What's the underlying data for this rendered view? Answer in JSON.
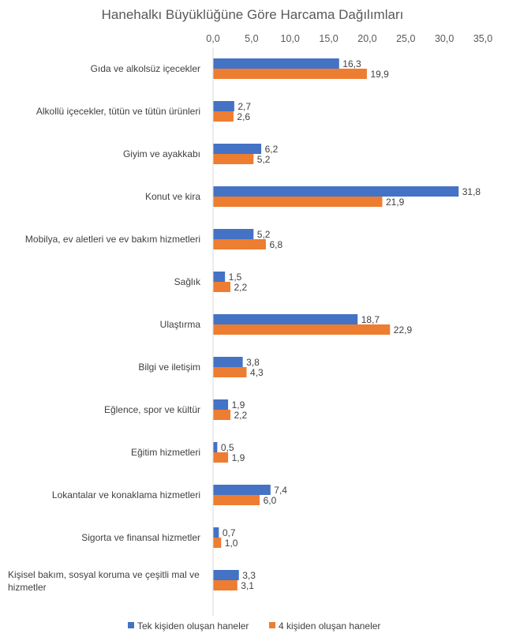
{
  "chart_data": {
    "type": "bar",
    "orientation": "horizontal",
    "title": "Hanehalkı Büyüklüğüne Göre Harcama Dağılımları",
    "xlim": [
      0,
      35
    ],
    "xticks": [
      "0,0",
      "5,0",
      "10,0",
      "15,0",
      "20,0",
      "25,0",
      "30,0",
      "35,0"
    ],
    "x_axis_position": "top",
    "grid": false,
    "legend_position": "bottom",
    "categories": [
      [
        "Gıda ve alkolsüz içecekler"
      ],
      [
        "Alkollü içecekler, tütün ve tütün ürünleri"
      ],
      [
        "Giyim ve ayakkabı"
      ],
      [
        "Konut ve kira"
      ],
      [
        "Mobilya, ev aletleri ve ev bakım hizmetleri"
      ],
      [
        "Sağlık"
      ],
      [
        "Ulaştırma"
      ],
      [
        "Bilgi ve iletişim"
      ],
      [
        "Eğlence, spor ve kültür"
      ],
      [
        "Eğitim hizmetleri"
      ],
      [
        "Lokantalar ve konaklama hizmetleri"
      ],
      [
        "Sigorta ve finansal hizmetler"
      ],
      [
        "Kişisel bakım, sosyal koruma ve çeşitli mal ve",
        "hizmetler"
      ]
    ],
    "series": [
      {
        "name": "Tek kişiden oluşan haneler",
        "color": "#4472C4",
        "values": [
          16.3,
          2.7,
          6.2,
          31.8,
          5.2,
          1.5,
          18.7,
          3.8,
          1.9,
          0.5,
          7.4,
          0.7,
          3.3
        ],
        "labels": [
          "16,3",
          "2,7",
          "6,2",
          "31,8",
          "5,2",
          "1,5",
          "18,7",
          "3,8",
          "1,9",
          "0,5",
          "7,4",
          "0,7",
          "3,3"
        ]
      },
      {
        "name": "4 kişiden oluşan haneler",
        "color": "#ED7D31",
        "values": [
          19.9,
          2.6,
          5.2,
          21.9,
          6.8,
          2.2,
          22.9,
          4.3,
          2.2,
          1.9,
          6.0,
          1.0,
          3.1
        ],
        "labels": [
          "19,9",
          "2,6",
          "5,2",
          "21,9",
          "6,8",
          "2,2",
          "22,9",
          "4,3",
          "2,2",
          "1,9",
          "6,0",
          "1,0",
          "3,1"
        ]
      }
    ]
  }
}
